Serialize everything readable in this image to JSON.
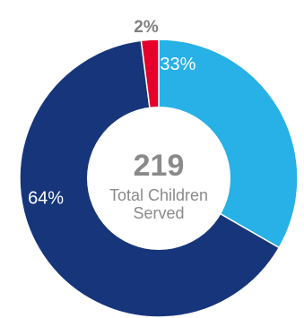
{
  "chart_data": {
    "type": "pie",
    "variant": "donut",
    "title": "",
    "slices": [
      {
        "label": "33%",
        "value": 33,
        "color": "#27b1e6",
        "label_color": "#ffffff"
      },
      {
        "label": "64%",
        "value": 64,
        "color": "#17357a",
        "label_color": "#ffffff"
      },
      {
        "label": "2%",
        "value": 2,
        "color": "#e4002b",
        "label_color": "#7f7f7f"
      }
    ],
    "center": {
      "value": "219",
      "caption_line1": "Total Children",
      "caption_line2": "Served"
    },
    "legend": "none",
    "colors": {
      "center_text": "#8a8a8a",
      "background": "#ffffff"
    }
  }
}
